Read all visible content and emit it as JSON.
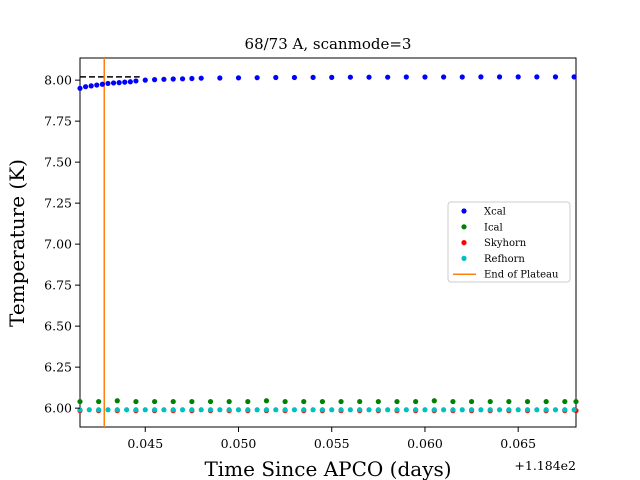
{
  "chart_data": {
    "type": "scatter",
    "title": "68/73 A, scanmode=3",
    "xlabel": "Time Since APCO (days)",
    "ylabel": "Temperature (K)",
    "x_offset_label": "+1.184e2",
    "xlim": [
      118.4415,
      118.4681
    ],
    "ylim": [
      5.885,
      8.135
    ],
    "xticks": [
      118.445,
      118.45,
      118.455,
      118.46,
      118.465
    ],
    "xtick_labels": [
      "0.045",
      "0.050",
      "0.055",
      "0.060",
      "0.065"
    ],
    "yticks": [
      6.0,
      6.25,
      6.5,
      6.75,
      7.0,
      7.25,
      7.5,
      7.75,
      8.0
    ],
    "ytick_labels": [
      "6.00",
      "6.25",
      "6.50",
      "6.75",
      "7.00",
      "7.25",
      "7.50",
      "7.75",
      "8.00"
    ],
    "reference_line": {
      "y": 8.02,
      "x_end": 118.4447,
      "color": "#000000",
      "style": "dashed"
    },
    "end_of_plateau_x": 118.4428,
    "legend_position": "center-right",
    "series": [
      {
        "name": "Xcal",
        "color": "#0000ff",
        "x": [
          118.4415,
          118.4418,
          118.4421,
          118.4424,
          118.4427,
          118.443,
          118.4433,
          118.4436,
          118.4439,
          118.4442,
          118.4445,
          118.445,
          118.4455,
          118.446,
          118.4465,
          118.447,
          118.4475,
          118.448,
          118.449,
          118.45,
          118.451,
          118.452,
          118.453,
          118.454,
          118.455,
          118.456,
          118.457,
          118.458,
          118.459,
          118.46,
          118.461,
          118.462,
          118.463,
          118.464,
          118.465,
          118.466,
          118.467,
          118.468
        ],
        "y": [
          7.95,
          7.96,
          7.965,
          7.97,
          7.975,
          7.98,
          7.983,
          7.985,
          7.988,
          7.99,
          7.995,
          8.0,
          8.003,
          8.005,
          8.007,
          8.008,
          8.01,
          8.012,
          8.013,
          8.014,
          8.015,
          8.016,
          8.016,
          8.017,
          8.017,
          8.018,
          8.018,
          8.018,
          8.019,
          8.019,
          8.019,
          8.019,
          8.02,
          8.02,
          8.02,
          8.02,
          8.02,
          8.02
        ]
      },
      {
        "name": "Ical",
        "color": "#008000",
        "x": [
          118.4415,
          118.4425,
          118.4435,
          118.4445,
          118.4455,
          118.4465,
          118.4475,
          118.4485,
          118.4495,
          118.4505,
          118.4515,
          118.4525,
          118.4535,
          118.4545,
          118.4555,
          118.4565,
          118.4575,
          118.4585,
          118.4595,
          118.4605,
          118.4615,
          118.4625,
          118.4635,
          118.4645,
          118.4655,
          118.4665,
          118.4675,
          118.4681
        ],
        "y": [
          6.04,
          6.04,
          6.045,
          6.04,
          6.04,
          6.04,
          6.04,
          6.04,
          6.04,
          6.04,
          6.045,
          6.04,
          6.04,
          6.04,
          6.04,
          6.04,
          6.04,
          6.04,
          6.04,
          6.045,
          6.04,
          6.04,
          6.04,
          6.04,
          6.04,
          6.04,
          6.04,
          6.04
        ]
      },
      {
        "name": "Skyhorn",
        "color": "#ff0000",
        "x": [
          118.4415,
          118.4425,
          118.4435,
          118.4445,
          118.4455,
          118.4465,
          118.4475,
          118.4485,
          118.4495,
          118.4505,
          118.4515,
          118.4525,
          118.4535,
          118.4545,
          118.4555,
          118.4565,
          118.4575,
          118.4585,
          118.4595,
          118.4605,
          118.4615,
          118.4625,
          118.4635,
          118.4645,
          118.4655,
          118.4665,
          118.4675,
          118.4681
        ],
        "y": [
          5.985,
          5.985,
          5.985,
          5.985,
          5.985,
          5.985,
          5.985,
          5.985,
          5.985,
          5.985,
          5.985,
          5.985,
          5.985,
          5.985,
          5.985,
          5.985,
          5.985,
          5.985,
          5.985,
          5.985,
          5.985,
          5.985,
          5.985,
          5.985,
          5.985,
          5.985,
          5.985,
          5.985
        ]
      },
      {
        "name": "Refhorn",
        "color": "#00bfbf",
        "x": [
          118.4415,
          118.442,
          118.4425,
          118.443,
          118.4435,
          118.444,
          118.4445,
          118.445,
          118.4455,
          118.446,
          118.4465,
          118.447,
          118.4475,
          118.448,
          118.4485,
          118.449,
          118.4495,
          118.45,
          118.4505,
          118.451,
          118.4515,
          118.452,
          118.4525,
          118.453,
          118.4535,
          118.454,
          118.4545,
          118.455,
          118.4555,
          118.456,
          118.4565,
          118.457,
          118.4575,
          118.458,
          118.4585,
          118.459,
          118.4595,
          118.46,
          118.4605,
          118.461,
          118.4615,
          118.462,
          118.4625,
          118.463,
          118.4635,
          118.464,
          118.4645,
          118.465,
          118.4655,
          118.466,
          118.4665,
          118.467,
          118.4675,
          118.468
        ],
        "y": [
          5.99,
          5.99,
          5.99,
          5.99,
          5.99,
          5.99,
          5.99,
          5.99,
          5.99,
          5.99,
          5.99,
          5.99,
          5.99,
          5.99,
          5.99,
          5.99,
          5.99,
          5.99,
          5.99,
          5.99,
          5.99,
          5.99,
          5.99,
          5.99,
          5.99,
          5.99,
          5.99,
          5.99,
          5.99,
          5.99,
          5.99,
          5.99,
          5.99,
          5.99,
          5.99,
          5.99,
          5.99,
          5.99,
          5.99,
          5.99,
          5.99,
          5.99,
          5.99,
          5.99,
          5.99,
          5.99,
          5.99,
          5.99,
          5.99,
          5.99,
          5.99,
          5.99,
          5.99,
          5.99
        ]
      }
    ],
    "legend": [
      {
        "label": "Xcal",
        "color": "#0000ff",
        "kind": "marker"
      },
      {
        "label": "Ical",
        "color": "#008000",
        "kind": "marker"
      },
      {
        "label": "Skyhorn",
        "color": "#ff0000",
        "kind": "marker"
      },
      {
        "label": "Refhorn",
        "color": "#00bfbf",
        "kind": "marker"
      },
      {
        "label": "End of Plateau",
        "color": "#ff7f0e",
        "kind": "line"
      }
    ]
  }
}
